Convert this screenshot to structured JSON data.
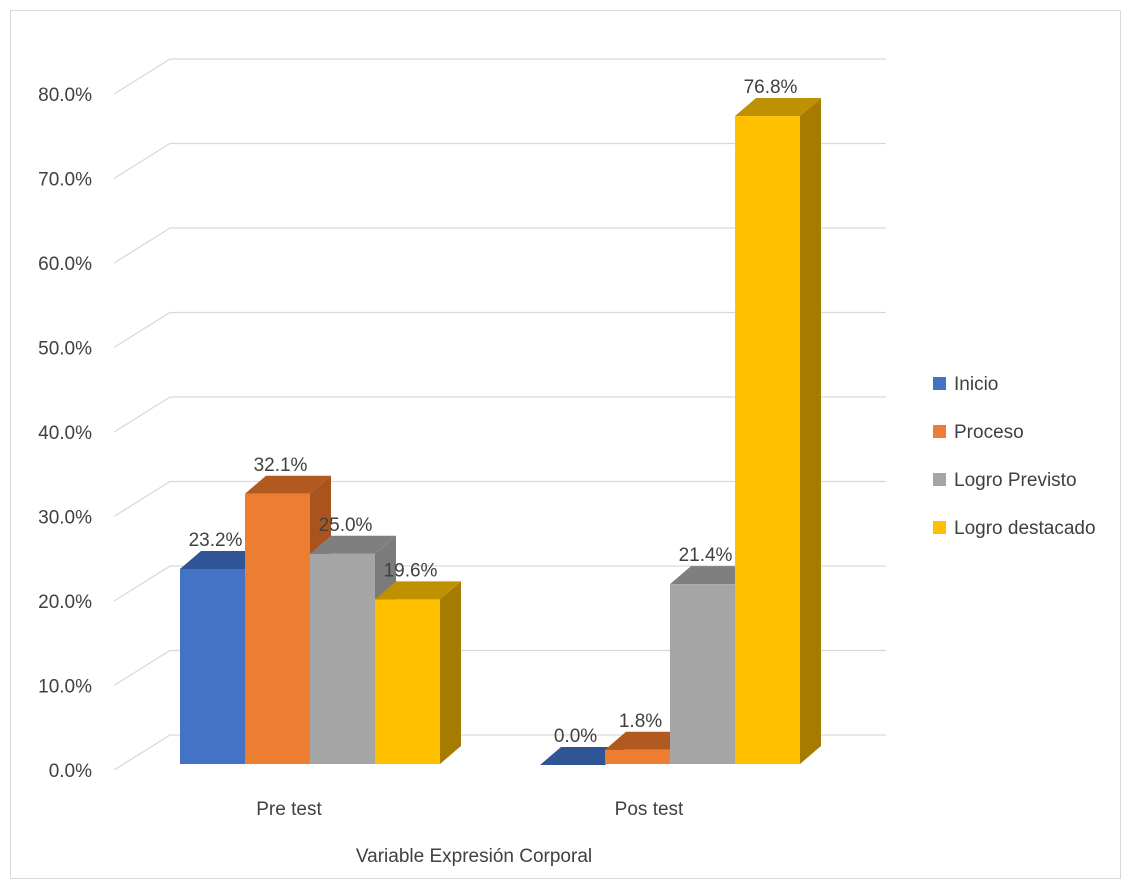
{
  "chart_data": {
    "type": "bar",
    "title": "",
    "xlabel": "Variable Expresión Corporal",
    "ylabel": "",
    "categories": [
      "Pre test",
      "Pos test"
    ],
    "series": [
      {
        "name": "Inicio",
        "values": [
          23.2,
          0.0
        ],
        "color": "#4472C4",
        "side_color": "#2F5597",
        "top_color": "#2F5597"
      },
      {
        "name": "Proceso",
        "values": [
          32.1,
          1.8
        ],
        "color": "#ED7D31",
        "side_color": "#A9541C",
        "top_color": "#B15A1F"
      },
      {
        "name": "Logro Previsto",
        "values": [
          25.0,
          21.4
        ],
        "color": "#A5A5A5",
        "side_color": "#7B7B7B",
        "top_color": "#7F7F7F"
      },
      {
        "name": "Logro destacado",
        "values": [
          19.6,
          76.8
        ],
        "color": "#FFC000",
        "side_color": "#A67C00",
        "top_color": "#BF9000"
      }
    ],
    "data_labels": [
      [
        "23.2%",
        "0.0%"
      ],
      [
        "32.1%",
        "1.8%"
      ],
      [
        "25.0%",
        "21.4%"
      ],
      [
        "19.6%",
        "76.8%"
      ]
    ],
    "ylim": [
      0,
      80
    ],
    "y_ticks": [
      "0.0%",
      "10.0%",
      "20.0%",
      "30.0%",
      "40.0%",
      "50.0%",
      "60.0%",
      "70.0%",
      "80.0%"
    ],
    "grid": true,
    "legend_position": "right",
    "style": "3d-clustered-column"
  }
}
